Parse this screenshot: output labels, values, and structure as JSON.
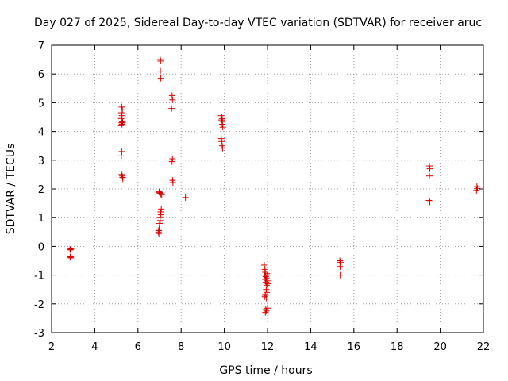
{
  "chart_data": {
    "type": "scatter",
    "title": "Day 027 of 2025, Sidereal Day-to-day VTEC variation (SDTVAR) for receiver aruc",
    "xlabel": "GPS time / hours",
    "ylabel": "SDTVAR / TECUs",
    "xlim": [
      2,
      22
    ],
    "ylim": [
      -3,
      7
    ],
    "xticks": [
      2,
      4,
      6,
      8,
      10,
      12,
      14,
      16,
      18,
      20,
      22
    ],
    "yticks": [
      -3,
      -2,
      -1,
      0,
      1,
      2,
      3,
      4,
      5,
      6,
      7
    ],
    "grid": true,
    "marker": "plus",
    "series": [
      {
        "name": "SDTVAR",
        "color": "#dd0000",
        "points": [
          [
            2.85,
            -0.1
          ],
          [
            2.88,
            -0.12
          ],
          [
            2.9,
            -0.08
          ],
          [
            2.86,
            -0.38
          ],
          [
            2.9,
            -0.4
          ],
          [
            2.88,
            -0.36
          ],
          [
            5.25,
            4.85
          ],
          [
            5.28,
            4.75
          ],
          [
            5.23,
            4.65
          ],
          [
            5.26,
            4.55
          ],
          [
            5.22,
            4.45
          ],
          [
            5.27,
            4.35
          ],
          [
            5.24,
            4.3
          ],
          [
            5.26,
            4.25
          ],
          [
            5.22,
            4.2
          ],
          [
            5.29,
            4.32
          ],
          [
            5.25,
            3.3
          ],
          [
            5.23,
            3.15
          ],
          [
            5.24,
            2.5
          ],
          [
            5.27,
            2.45
          ],
          [
            5.29,
            2.4
          ],
          [
            5.3,
            2.35
          ],
          [
            6.98,
            1.9
          ],
          [
            7.02,
            1.85
          ],
          [
            7.06,
            1.82
          ],
          [
            7.1,
            1.8
          ],
          [
            7.0,
            1.88
          ],
          [
            7.08,
            1.3
          ],
          [
            7.05,
            1.2
          ],
          [
            7.06,
            1.1
          ],
          [
            7.02,
            1.0
          ],
          [
            7.03,
            0.9
          ],
          [
            7.0,
            0.8
          ],
          [
            6.98,
            0.6
          ],
          [
            6.96,
            0.55
          ],
          [
            6.95,
            0.5
          ],
          [
            6.97,
            0.45
          ],
          [
            7.03,
            6.5
          ],
          [
            7.05,
            6.45
          ],
          [
            7.04,
            6.1
          ],
          [
            7.06,
            5.85
          ],
          [
            7.58,
            5.25
          ],
          [
            7.6,
            5.1
          ],
          [
            7.56,
            4.8
          ],
          [
            7.6,
            3.05
          ],
          [
            7.58,
            2.95
          ],
          [
            7.6,
            2.3
          ],
          [
            7.62,
            2.22
          ],
          [
            8.2,
            1.7
          ],
          [
            9.85,
            4.55
          ],
          [
            9.88,
            4.5
          ],
          [
            9.9,
            4.45
          ],
          [
            9.87,
            4.4
          ],
          [
            9.92,
            4.35
          ],
          [
            9.9,
            4.25
          ],
          [
            9.93,
            4.15
          ],
          [
            9.86,
            3.75
          ],
          [
            9.88,
            3.65
          ],
          [
            9.9,
            3.5
          ],
          [
            9.92,
            3.42
          ],
          [
            11.85,
            -0.65
          ],
          [
            11.88,
            -0.8
          ],
          [
            11.9,
            -0.9
          ],
          [
            11.87,
            -1.0
          ],
          [
            11.92,
            -1.05
          ],
          [
            11.95,
            -1.1
          ],
          [
            11.9,
            -1.15
          ],
          [
            12.0,
            -1.2
          ],
          [
            11.93,
            -1.25
          ],
          [
            12.02,
            -1.3
          ],
          [
            11.96,
            -1.35
          ],
          [
            11.98,
            -0.95
          ],
          [
            12.01,
            -1.0
          ],
          [
            11.94,
            -1.5
          ],
          [
            11.97,
            -1.6
          ],
          [
            11.9,
            -1.7
          ],
          [
            11.95,
            -1.8
          ],
          [
            11.88,
            -1.75
          ],
          [
            11.99,
            -1.55
          ],
          [
            11.92,
            -2.2
          ],
          [
            11.95,
            -2.25
          ],
          [
            11.9,
            -2.3
          ],
          [
            12.0,
            -2.15
          ],
          [
            15.35,
            -0.5
          ],
          [
            15.38,
            -0.55
          ],
          [
            15.36,
            -0.7
          ],
          [
            15.37,
            -1.0
          ],
          [
            19.5,
            2.8
          ],
          [
            19.52,
            2.7
          ],
          [
            19.5,
            2.45
          ],
          [
            19.48,
            1.6
          ],
          [
            19.52,
            1.55
          ],
          [
            21.7,
            2.08
          ],
          [
            21.72,
            2.02
          ],
          [
            21.68,
            1.95
          ]
        ]
      }
    ]
  }
}
